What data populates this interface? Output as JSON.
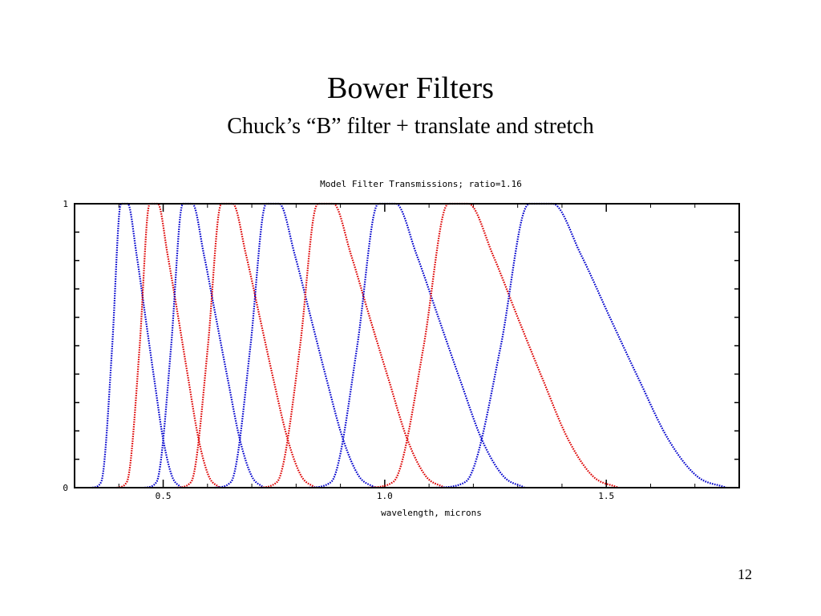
{
  "slide": {
    "title": "Bower Filters",
    "subtitle": "Chuck’s “B” filter + translate and stretch",
    "page_number": "12"
  },
  "chart_data": {
    "type": "line",
    "title": "Model Filter Transmissions;  ratio=1.16",
    "xlabel": "wavelength, microns",
    "ylabel": "",
    "xlim": [
      0.3,
      1.8
    ],
    "ylim": [
      0,
      1
    ],
    "x_ticks": [
      0.5,
      1.0,
      1.5
    ],
    "x_tick_labels": [
      "0.5",
      "1.0",
      "1.5"
    ],
    "y_tick_labels": [
      "0",
      "1"
    ],
    "y_minor_ticks": [
      0.1,
      0.2,
      0.3,
      0.4,
      0.5,
      0.6,
      0.7,
      0.8,
      0.9
    ],
    "grid": false,
    "legend": "none",
    "colors": {
      "blue": "#0000cc",
      "red": "#dd0000"
    },
    "series": [
      {
        "color": "blue",
        "x": [
          0.34,
          0.36,
          0.385,
          0.4,
          0.405,
          0.42,
          0.44,
          0.46,
          0.48,
          0.5,
          0.52,
          0.54
        ],
        "y": [
          0,
          0.02,
          0.5,
          0.95,
          1,
          1,
          0.82,
          0.6,
          0.38,
          0.17,
          0.04,
          0
        ]
      },
      {
        "color": "red",
        "x": [
          0.395,
          0.418,
          0.447,
          0.464,
          0.47,
          0.488,
          0.51,
          0.534,
          0.557,
          0.58,
          0.603,
          0.627
        ],
        "y": [
          0,
          0.02,
          0.5,
          0.95,
          1,
          1,
          0.82,
          0.6,
          0.38,
          0.17,
          0.04,
          0
        ]
      },
      {
        "color": "blue",
        "x": [
          0.458,
          0.485,
          0.518,
          0.538,
          0.545,
          0.566,
          0.592,
          0.619,
          0.646,
          0.673,
          0.7,
          0.727
        ],
        "y": [
          0,
          0.02,
          0.5,
          0.95,
          1,
          1,
          0.82,
          0.6,
          0.38,
          0.17,
          0.04,
          0
        ]
      },
      {
        "color": "red",
        "x": [
          0.531,
          0.563,
          0.601,
          0.624,
          0.632,
          0.657,
          0.687,
          0.718,
          0.749,
          0.781,
          0.812,
          0.843
        ],
        "y": [
          0,
          0.02,
          0.5,
          0.95,
          1,
          1,
          0.82,
          0.6,
          0.38,
          0.17,
          0.04,
          0
        ]
      },
      {
        "color": "blue",
        "x": [
          0.616,
          0.653,
          0.697,
          0.724,
          0.733,
          0.762,
          0.797,
          0.833,
          0.869,
          0.906,
          0.942,
          0.978
        ],
        "y": [
          0,
          0.02,
          0.5,
          0.95,
          1,
          1,
          0.82,
          0.6,
          0.38,
          0.17,
          0.04,
          0
        ]
      },
      {
        "color": "red",
        "x": [
          0.715,
          0.757,
          0.809,
          0.839,
          0.85,
          0.884,
          0.924,
          0.966,
          1.009,
          1.051,
          1.093,
          1.135
        ],
        "y": [
          0,
          0.02,
          0.5,
          0.95,
          1,
          1,
          0.82,
          0.6,
          0.38,
          0.17,
          0.04,
          0
        ]
      },
      {
        "color": "blue",
        "x": [
          0.829,
          0.879,
          0.938,
          0.974,
          0.986,
          1.025,
          1.072,
          1.121,
          1.17,
          1.219,
          1.268,
          1.316
        ],
        "y": [
          0,
          0.02,
          0.5,
          0.95,
          1,
          1,
          0.82,
          0.6,
          0.38,
          0.17,
          0.04,
          0
        ]
      },
      {
        "color": "red",
        "x": [
          0.962,
          1.019,
          1.088,
          1.13,
          1.144,
          1.189,
          1.244,
          1.3,
          1.357,
          1.414,
          1.47,
          1.527
        ],
        "y": [
          0,
          0.02,
          0.5,
          0.95,
          1,
          1,
          0.82,
          0.6,
          0.38,
          0.17,
          0.04,
          0
        ]
      },
      {
        "color": "blue",
        "x": [
          1.116,
          1.182,
          1.262,
          1.31,
          1.327,
          1.379,
          1.443,
          1.508,
          1.574,
          1.64,
          1.705,
          1.771
        ],
        "y": [
          0,
          0.02,
          0.5,
          0.95,
          1,
          1,
          0.82,
          0.6,
          0.38,
          0.17,
          0.04,
          0
        ]
      }
    ]
  }
}
